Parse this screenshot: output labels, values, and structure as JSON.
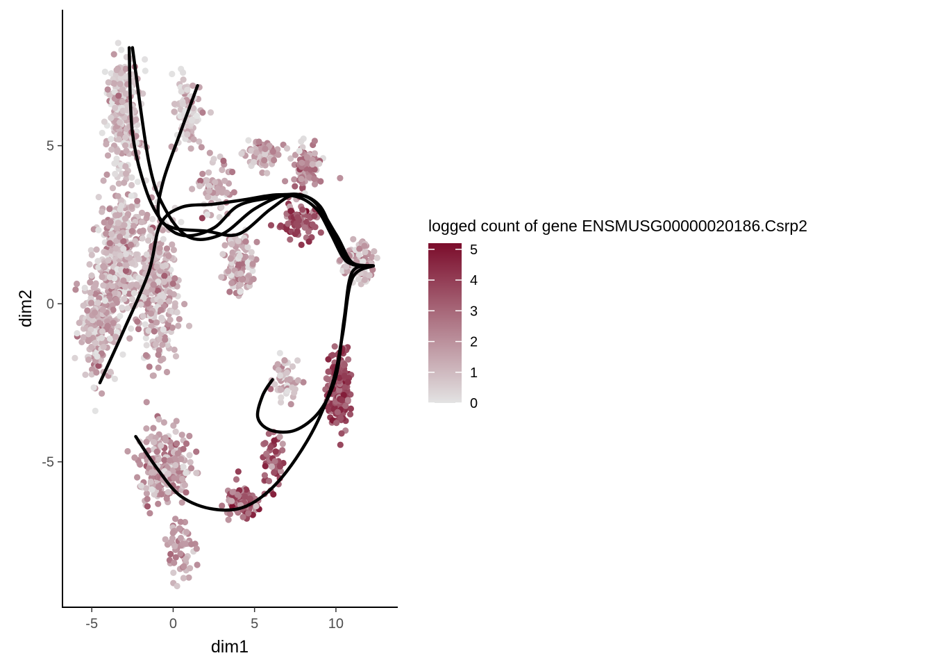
{
  "chart_data": {
    "type": "scatter",
    "title": "",
    "xlabel": "dim1",
    "ylabel": "dim2",
    "xlim": [
      -6.8,
      13.8
    ],
    "ylim": [
      -9.6,
      9.3
    ],
    "x_ticks": [
      -5,
      0,
      5,
      10
    ],
    "y_ticks": [
      -5,
      0,
      5
    ],
    "grid": false,
    "color_scale": {
      "title": "logged count of gene ENSMUSG00000020186.Csrp2",
      "min": 0,
      "max": 5.2,
      "ticks": [
        0,
        1,
        2,
        3,
        4,
        5
      ],
      "low_color": "#e3e3e3",
      "high_color": "#7b0c2b",
      "legend_position": "right"
    },
    "point_clusters": [
      {
        "cx": -3.0,
        "cy": 6.0,
        "sx": 0.9,
        "sy": 1.5,
        "n": 260,
        "mean": 0.9
      },
      {
        "cx": -3.3,
        "cy": 1.5,
        "sx": 1.1,
        "sy": 1.6,
        "n": 380,
        "mean": 1.1
      },
      {
        "cx": -4.6,
        "cy": -0.8,
        "sx": 0.9,
        "sy": 1.3,
        "n": 220,
        "mean": 1.2
      },
      {
        "cx": -1.0,
        "cy": 0.5,
        "sx": 1.0,
        "sy": 2.0,
        "n": 330,
        "mean": 1.2
      },
      {
        "cx": 0.8,
        "cy": 6.0,
        "sx": 0.7,
        "sy": 1.0,
        "n": 90,
        "mean": 0.5
      },
      {
        "cx": -0.5,
        "cy": -5.2,
        "sx": 1.3,
        "sy": 1.0,
        "n": 240,
        "mean": 1.6
      },
      {
        "cx": 0.5,
        "cy": -7.7,
        "sx": 0.6,
        "sy": 0.8,
        "n": 60,
        "mean": 1.7
      },
      {
        "cx": 4.2,
        "cy": -6.3,
        "sx": 0.8,
        "sy": 0.5,
        "n": 110,
        "mean": 3.0
      },
      {
        "cx": 2.5,
        "cy": 3.7,
        "sx": 0.8,
        "sy": 0.7,
        "n": 70,
        "mean": 1.4
      },
      {
        "cx": 5.5,
        "cy": 4.7,
        "sx": 0.9,
        "sy": 0.4,
        "n": 70,
        "mean": 1.2
      },
      {
        "cx": 8.2,
        "cy": 4.3,
        "sx": 0.8,
        "sy": 0.6,
        "n": 100,
        "mean": 2.0
      },
      {
        "cx": 7.7,
        "cy": 2.6,
        "sx": 1.0,
        "sy": 0.5,
        "n": 90,
        "mean": 3.3
      },
      {
        "cx": 11.3,
        "cy": 1.3,
        "sx": 0.8,
        "sy": 0.5,
        "n": 110,
        "mean": 1.2
      },
      {
        "cx": 4.1,
        "cy": 1.2,
        "sx": 0.7,
        "sy": 0.9,
        "n": 110,
        "mean": 1.4
      },
      {
        "cx": 10.2,
        "cy": -2.7,
        "sx": 0.6,
        "sy": 1.0,
        "n": 200,
        "mean": 3.6
      },
      {
        "cx": 6.8,
        "cy": -2.4,
        "sx": 0.7,
        "sy": 0.5,
        "n": 60,
        "mean": 0.7
      },
      {
        "cx": 6.2,
        "cy": -5.0,
        "sx": 0.6,
        "sy": 0.7,
        "n": 50,
        "mean": 3.2
      }
    ],
    "series": [
      {
        "x": [
          -2.7,
          -2.5,
          -1.6,
          -0.5,
          0.8,
          2.5,
          4.0,
          6.0,
          7.5,
          8.8,
          9.7,
          10.4,
          11.0,
          12.3
        ],
        "y": [
          8.1,
          5.4,
          3.5,
          2.5,
          2.15,
          2.4,
          3.1,
          3.35,
          3.4,
          3.0,
          2.2,
          1.5,
          1.25,
          1.2
        ]
      },
      {
        "x": [
          -2.5,
          -1.5,
          -0.5,
          1.0,
          3.0,
          5.0,
          7.0,
          8.5,
          9.5,
          10.3,
          11.0,
          12.3
        ],
        "y": [
          8.1,
          4.5,
          3.0,
          2.1,
          2.2,
          3.0,
          3.45,
          3.3,
          2.6,
          1.7,
          1.25,
          1.2
        ]
      },
      {
        "x": [
          1.5,
          0.5,
          -0.6,
          -0.9,
          0.0,
          2.0,
          4.0,
          6.0,
          7.5,
          9.0,
          10.0,
          11.0,
          12.3
        ],
        "y": [
          6.9,
          5.5,
          3.9,
          2.8,
          2.4,
          2.3,
          2.2,
          3.0,
          3.45,
          3.1,
          2.0,
          1.3,
          1.2
        ]
      },
      {
        "x": [
          -4.5,
          -3.0,
          -1.5,
          -0.8,
          0.5,
          2.5,
          4.5,
          6.5,
          8.5,
          10.0,
          11.0,
          12.3
        ],
        "y": [
          -2.5,
          -0.8,
          1.0,
          2.5,
          3.05,
          3.15,
          3.3,
          3.45,
          3.3,
          2.2,
          1.3,
          1.2
        ]
      },
      {
        "x": [
          12.3,
          11.0,
          10.5,
          10.0,
          9.0,
          7.5,
          6.0,
          5.2,
          5.5,
          6.1
        ],
        "y": [
          1.2,
          1.0,
          -0.5,
          -2.3,
          -3.4,
          -4.0,
          -4.0,
          -3.6,
          -2.9,
          -2.4
        ]
      },
      {
        "x": [
          12.3,
          11.0,
          10.4,
          9.8,
          8.5,
          6.5,
          4.5,
          2.5,
          0.5,
          -1.0,
          -2.3
        ],
        "y": [
          1.2,
          0.8,
          -1.0,
          -2.5,
          -4.1,
          -5.6,
          -6.4,
          -6.5,
          -6.1,
          -5.2,
          -4.2
        ]
      }
    ]
  }
}
